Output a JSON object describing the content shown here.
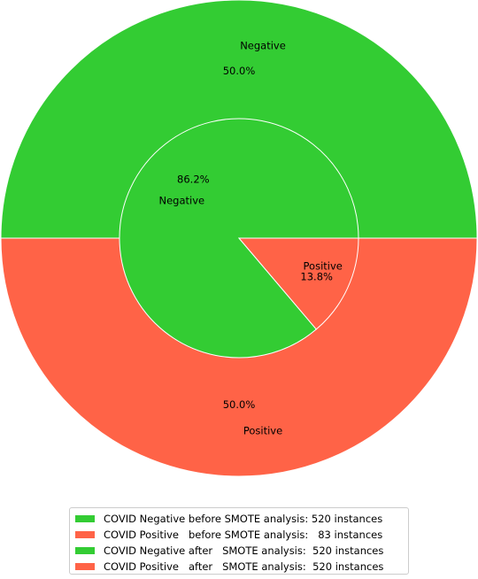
{
  "chart_data": {
    "type": "pie",
    "style": "nested-donut",
    "rings": [
      {
        "ring": "outer",
        "slices": [
          {
            "label": "Negative",
            "value": 50.0,
            "pct_label": "50.0%",
            "color": "#33cc33"
          },
          {
            "label": "Positive",
            "value": 50.0,
            "pct_label": "50.0%",
            "color": "#ff6347"
          }
        ]
      },
      {
        "ring": "inner",
        "slices": [
          {
            "label": "Negative",
            "value": 86.2,
            "pct_label": "86.2%",
            "color": "#33cc33"
          },
          {
            "label": "Positive",
            "value": 13.8,
            "pct_label": "13.8%",
            "color": "#ff6347"
          }
        ]
      }
    ],
    "legend": {
      "placement": "bottom",
      "entries": [
        {
          "text": "COVID Negative before SMOTE analysis: 520 instances",
          "color": "#33cc33"
        },
        {
          "text": "COVID Positive   before SMOTE analysis:   83 instances",
          "color": "#ff6347"
        },
        {
          "text": "COVID Negative after   SMOTE analysis:  520 instances",
          "color": "#33cc33"
        },
        {
          "text": "COVID Positive   after   SMOTE analysis:  520 instances",
          "color": "#ff6347"
        }
      ]
    }
  }
}
